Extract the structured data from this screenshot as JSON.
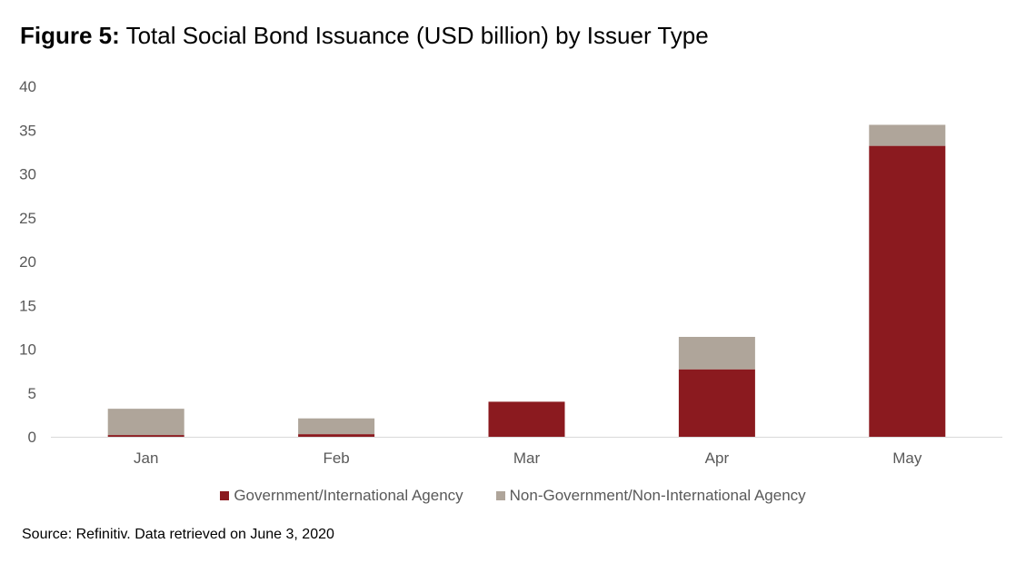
{
  "figure": {
    "label": "Figure 5:",
    "title": "Total Social Bond Issuance (USD billion) by Issuer Type",
    "source": "Source: Refinitiv. Data retrieved on June 3, 2020"
  },
  "colors": {
    "government": "#8B1A1F",
    "non_government": "#AFA59A",
    "axis": "#D9D9D9",
    "tick_text": "#595959"
  },
  "chart_data": {
    "type": "bar",
    "stacked": true,
    "categories": [
      "Jan",
      "Feb",
      "Mar",
      "Apr",
      "May"
    ],
    "series": [
      {
        "name": "Government/International Agency",
        "values": [
          0.2,
          0.3,
          4.0,
          7.7,
          33.2
        ]
      },
      {
        "name": "Non-Government/Non-International Agency",
        "values": [
          3.0,
          1.8,
          0.0,
          3.7,
          2.4
        ]
      }
    ],
    "ylim": [
      0,
      40
    ],
    "yticks": [
      0,
      5,
      10,
      15,
      20,
      25,
      30,
      35,
      40
    ],
    "xlabel": "",
    "ylabel": "",
    "grid": false,
    "legend_position": "bottom"
  }
}
